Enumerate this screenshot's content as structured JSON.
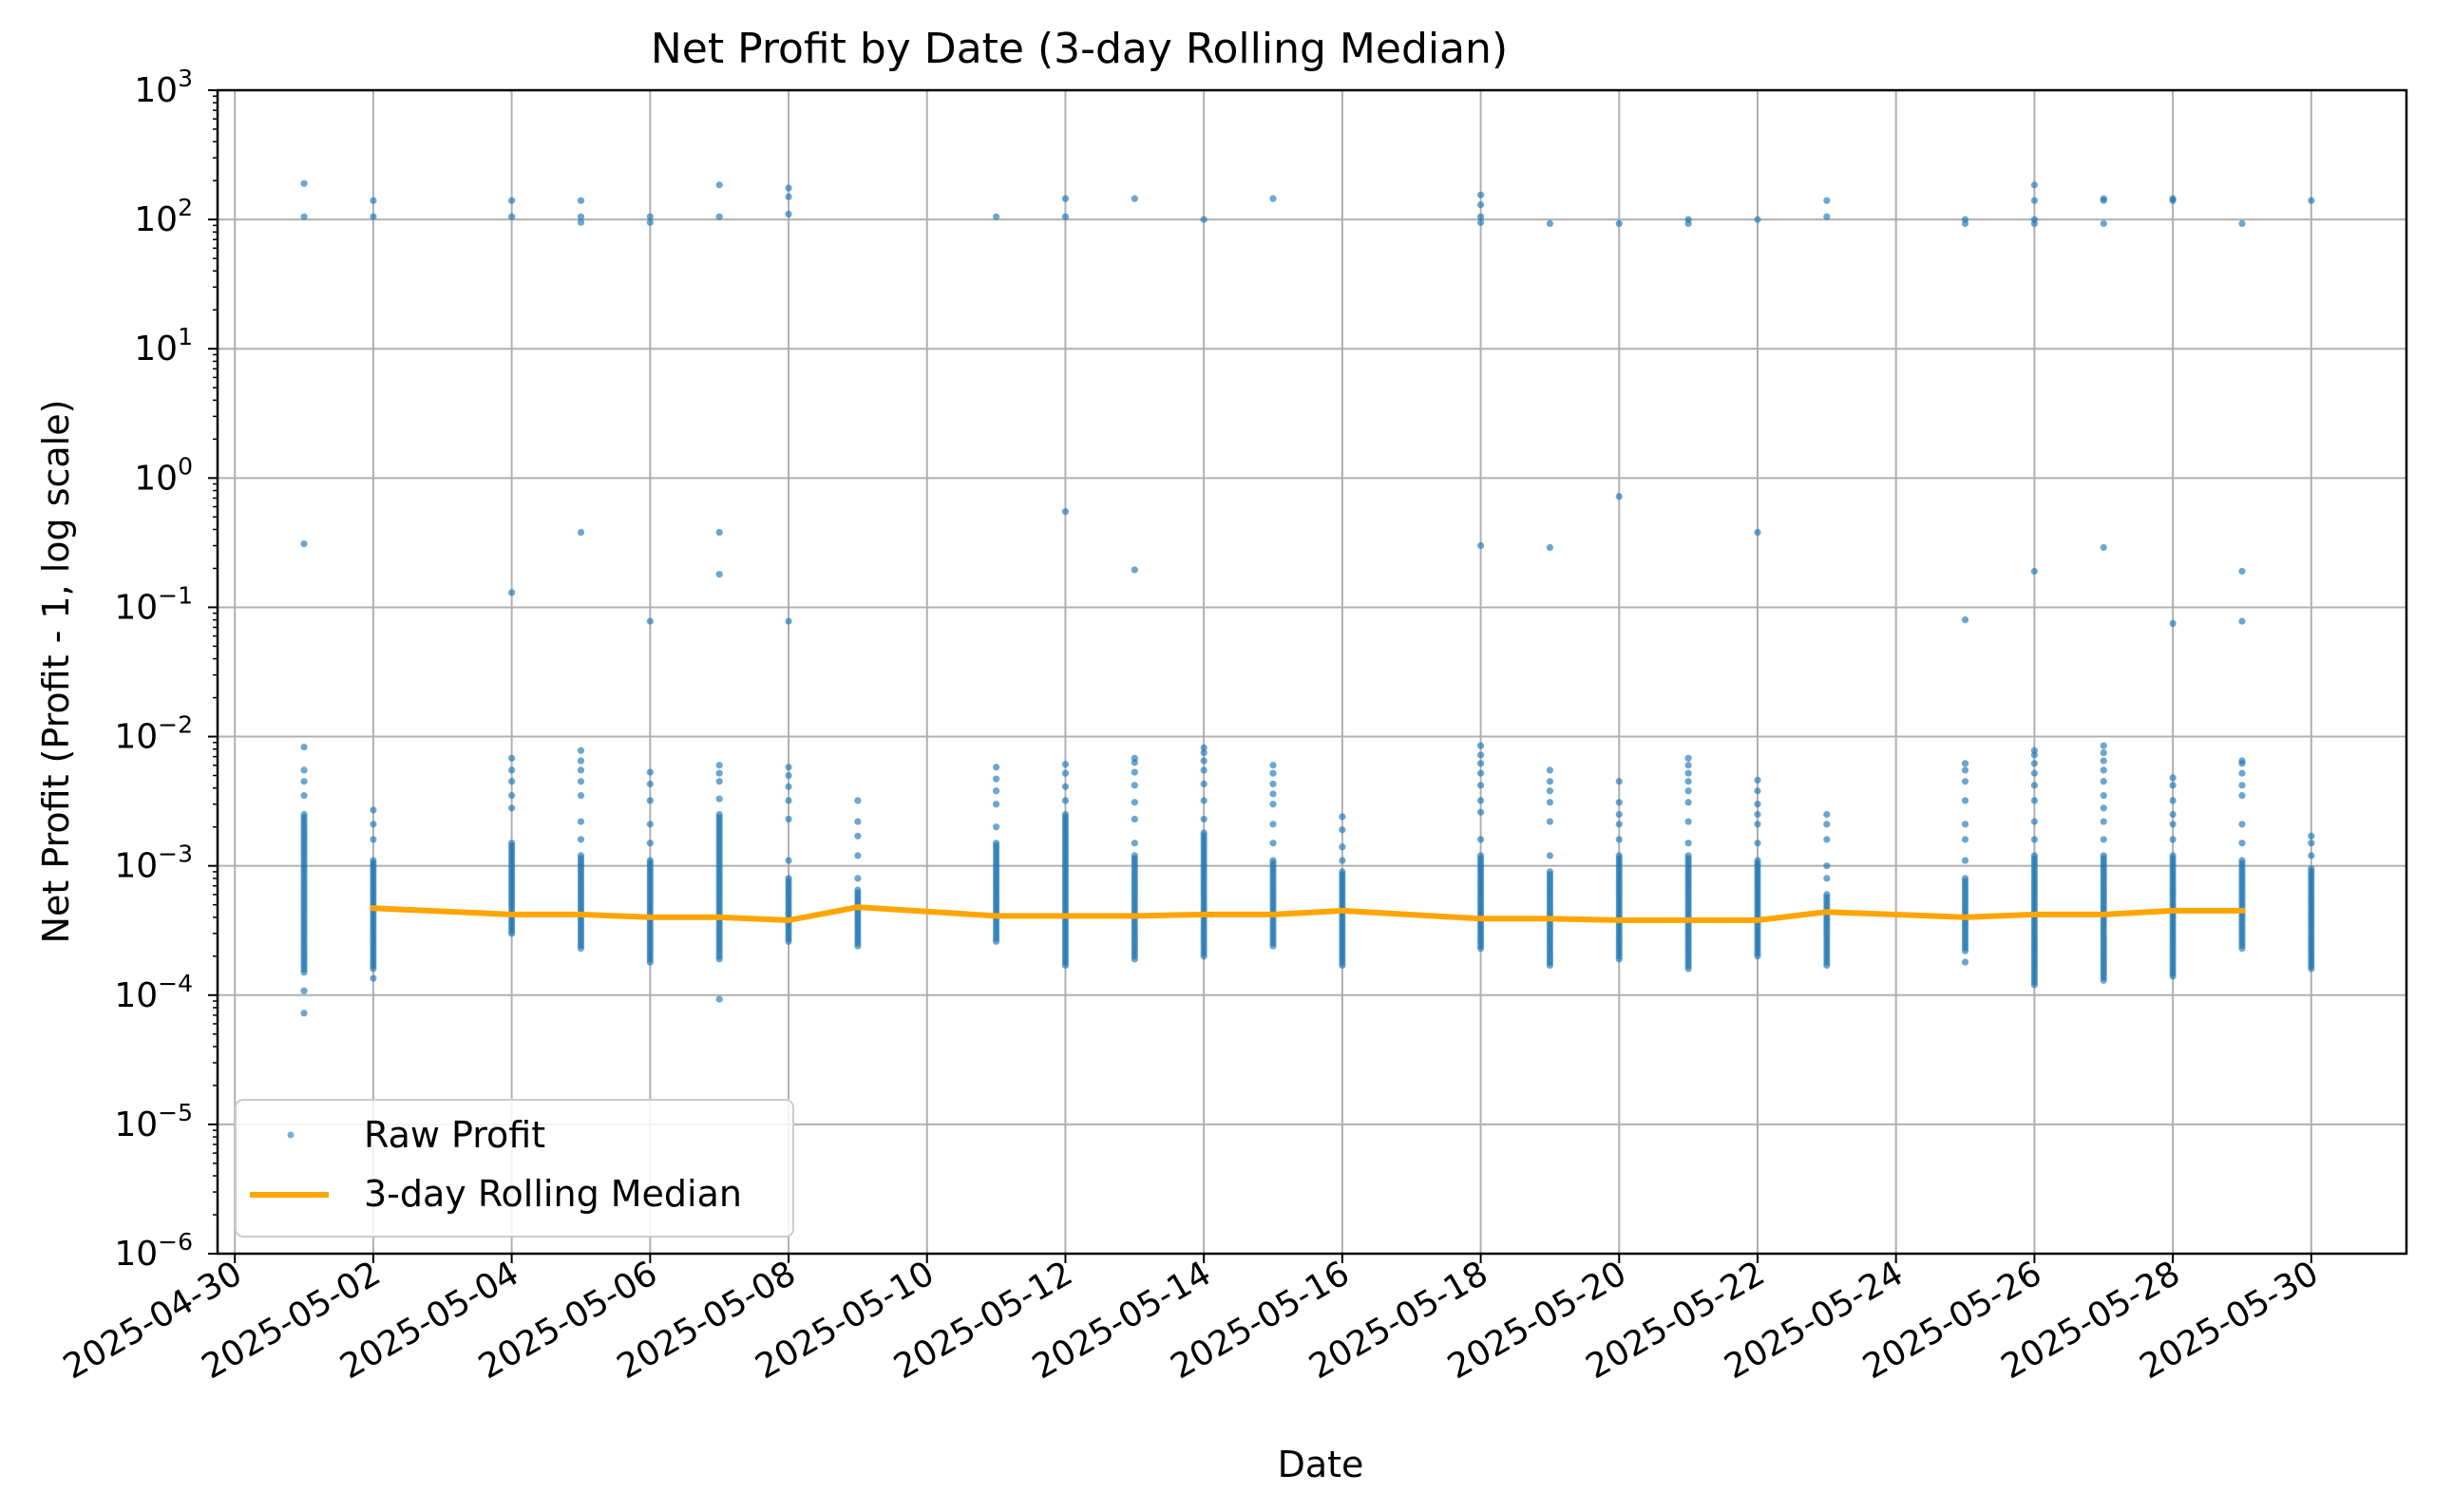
{
  "chart_data": {
    "type": "scatter",
    "title": "Net Profit by Date (3-day Rolling Median)",
    "xlabel": "Date",
    "ylabel": "Net Profit (Profit - 1, log scale)",
    "yscale": "log",
    "ylim": [
      1e-06,
      1000
    ],
    "xlim": [
      "2025-04-29T18:00",
      "2025-05-31T09:00"
    ],
    "grid": true,
    "legend_position": "lower-left",
    "x_ticks": [
      "2025-04-30",
      "2025-05-02",
      "2025-05-04",
      "2025-05-06",
      "2025-05-08",
      "2025-05-10",
      "2025-05-12",
      "2025-05-14",
      "2025-05-16",
      "2025-05-18",
      "2025-05-20",
      "2025-05-22",
      "2025-05-24",
      "2025-05-26",
      "2025-05-28",
      "2025-05-30"
    ],
    "y_ticks": [
      {
        "base": "10",
        "exp": "−6",
        "value": 1e-06
      },
      {
        "base": "10",
        "exp": "−5",
        "value": 1e-05
      },
      {
        "base": "10",
        "exp": "−4",
        "value": 0.0001
      },
      {
        "base": "10",
        "exp": "−3",
        "value": 0.001
      },
      {
        "base": "10",
        "exp": "−2",
        "value": 0.01
      },
      {
        "base": "10",
        "exp": "−1",
        "value": 0.1
      },
      {
        "base": "10",
        "exp": "0",
        "value": 1
      },
      {
        "base": "10",
        "exp": "1",
        "value": 10
      },
      {
        "base": "10",
        "exp": "2",
        "value": 100
      },
      {
        "base": "10",
        "exp": "3",
        "value": 1000
      }
    ],
    "series": [
      {
        "name": "Raw Profit",
        "kind": "scatter",
        "color": "#1f77b4",
        "points_by_date": [
          {
            "date": "2025-05-01",
            "band": [
              0.00015,
              0.0025
            ],
            "outliers": [
              7.25e-05,
              0.000108,
              0.0035,
              0.0045,
              0.0055,
              0.0083,
              0.31,
              105,
              190
            ]
          },
          {
            "date": "2025-05-02",
            "band": [
              0.00016,
              0.0011
            ],
            "outliers": [
              0.000135,
              0.0016,
              0.0021,
              0.0027,
              105,
              140
            ]
          },
          {
            "date": "2025-05-04",
            "band": [
              0.0003,
              0.0015
            ],
            "outliers": [
              0.0028,
              0.0035,
              0.0045,
              0.0055,
              0.0068,
              0.13,
              105,
              140
            ]
          },
          {
            "date": "2025-05-05",
            "band": [
              0.00023,
              0.0012
            ],
            "outliers": [
              0.0016,
              0.0022,
              0.0035,
              0.0045,
              0.0055,
              0.0065,
              0.0078,
              0.38,
              95,
              105,
              140
            ]
          },
          {
            "date": "2025-05-06",
            "band": [
              0.00018,
              0.0011
            ],
            "outliers": [
              0.0015,
              0.0021,
              0.0032,
              0.0043,
              0.0053,
              0.078,
              95,
              105
            ]
          },
          {
            "date": "2025-05-07",
            "band": [
              0.00019,
              0.0025
            ],
            "outliers": [
              9.3e-05,
              0.0033,
              0.0045,
              0.0052,
              0.006,
              0.18,
              0.38,
              105,
              185
            ]
          },
          {
            "date": "2025-05-08",
            "band": [
              0.00026,
              0.0008
            ],
            "outliers": [
              0.0011,
              0.0023,
              0.0032,
              0.0041,
              0.005,
              0.0058,
              0.078,
              110,
              150,
              175
            ]
          },
          {
            "date": "2025-05-09",
            "band": [
              0.00024,
              0.00065
            ],
            "outliers": [
              0.0008,
              0.0012,
              0.0017,
              0.0022,
              0.0032
            ]
          },
          {
            "date": "2025-05-11",
            "band": [
              0.00026,
              0.0015
            ],
            "outliers": [
              0.002,
              0.003,
              0.0038,
              0.0047,
              0.0058,
              105
            ]
          },
          {
            "date": "2025-05-12",
            "band": [
              0.00017,
              0.0025
            ],
            "outliers": [
              0.0032,
              0.0041,
              0.0052,
              0.0061,
              0.55,
              105,
              145
            ]
          },
          {
            "date": "2025-05-13",
            "band": [
              0.00019,
              0.0012
            ],
            "outliers": [
              0.0015,
              0.0023,
              0.0031,
              0.0042,
              0.0053,
              0.0063,
              0.0068,
              0.195,
              145
            ]
          },
          {
            "date": "2025-05-14",
            "band": [
              0.0002,
              0.0018
            ],
            "outliers": [
              0.0023,
              0.0032,
              0.0043,
              0.0055,
              0.0065,
              0.0075,
              0.0082,
              100
            ]
          },
          {
            "date": "2025-05-15",
            "band": [
              0.00024,
              0.0011
            ],
            "outliers": [
              0.0015,
              0.0021,
              0.003,
              0.0036,
              0.0043,
              0.0052,
              0.006,
              145
            ]
          },
          {
            "date": "2025-05-16",
            "band": [
              0.00017,
              0.0009
            ],
            "outliers": [
              0.0011,
              0.0014,
              0.0019,
              0.0024
            ]
          },
          {
            "date": "2025-05-18",
            "band": [
              0.00023,
              0.0012
            ],
            "outliers": [
              0.0016,
              0.0026,
              0.0032,
              0.0042,
              0.0052,
              0.0062,
              0.0072,
              0.0085,
              0.3,
              95,
              105,
              130,
              155
            ]
          },
          {
            "date": "2025-05-19",
            "band": [
              0.00017,
              0.0009
            ],
            "outliers": [
              0.0012,
              0.0022,
              0.0031,
              0.0038,
              0.0045,
              0.0055,
              0.29,
              93
            ]
          },
          {
            "date": "2025-05-20",
            "band": [
              0.00019,
              0.0012
            ],
            "outliers": [
              0.0016,
              0.0021,
              0.0025,
              0.0031,
              0.0045,
              0.72,
              93
            ]
          },
          {
            "date": "2025-05-21",
            "band": [
              0.00016,
              0.0012
            ],
            "outliers": [
              0.0015,
              0.0022,
              0.0031,
              0.0038,
              0.0045,
              0.0052,
              0.006,
              0.0068,
              93,
              100
            ]
          },
          {
            "date": "2025-05-22",
            "band": [
              0.0002,
              0.0011
            ],
            "outliers": [
              0.0015,
              0.0021,
              0.0025,
              0.003,
              0.0038,
              0.0046,
              0.38,
              100
            ]
          },
          {
            "date": "2025-05-23",
            "band": [
              0.00017,
              0.0006
            ],
            "outliers": [
              0.0008,
              0.001,
              0.0016,
              0.0021,
              0.0025,
              105,
              140
            ]
          },
          {
            "date": "2025-05-25",
            "band": [
              0.00022,
              0.0008
            ],
            "outliers": [
              0.00018,
              0.0011,
              0.0016,
              0.0021,
              0.0032,
              0.0045,
              0.0055,
              0.0062,
              0.08,
              93,
              100
            ]
          },
          {
            "date": "2025-05-26",
            "band": [
              0.00012,
              0.0012
            ],
            "outliers": [
              0.0016,
              0.0022,
              0.0032,
              0.0042,
              0.0052,
              0.0062,
              0.0072,
              0.0078,
              0.19,
              93,
              100,
              140,
              185
            ]
          },
          {
            "date": "2025-05-27",
            "band": [
              0.00013,
              0.0012
            ],
            "outliers": [
              0.0016,
              0.0022,
              0.0028,
              0.0035,
              0.0045,
              0.0055,
              0.0065,
              0.0075,
              0.0085,
              0.29,
              93,
              140,
              145
            ]
          },
          {
            "date": "2025-05-28",
            "band": [
              0.00014,
              0.0012
            ],
            "outliers": [
              0.0016,
              0.0021,
              0.0025,
              0.0032,
              0.0042,
              0.0048,
              0.075,
              140,
              145
            ]
          },
          {
            "date": "2025-05-29",
            "band": [
              0.00023,
              0.0011
            ],
            "outliers": [
              0.0015,
              0.0021,
              0.0035,
              0.0042,
              0.0052,
              0.0062,
              0.0065,
              0.078,
              0.19,
              93
            ]
          },
          {
            "date": "2025-05-30",
            "band": [
              0.00016,
              0.00095
            ],
            "outliers": [
              0.0012,
              0.0015,
              0.0017,
              140
            ]
          }
        ]
      },
      {
        "name": "3-day Rolling Median",
        "kind": "line",
        "color": "#ffa500",
        "x": [
          "2025-05-02",
          "2025-05-04",
          "2025-05-05",
          "2025-05-06",
          "2025-05-07",
          "2025-05-08",
          "2025-05-09",
          "2025-05-11",
          "2025-05-12",
          "2025-05-13",
          "2025-05-14",
          "2025-05-15",
          "2025-05-16",
          "2025-05-18",
          "2025-05-19",
          "2025-05-20",
          "2025-05-21",
          "2025-05-22",
          "2025-05-23",
          "2025-05-25",
          "2025-05-26",
          "2025-05-27",
          "2025-05-28",
          "2025-05-29"
        ],
        "values": [
          0.00047,
          0.00042,
          0.00042,
          0.0004,
          0.0004,
          0.00038,
          0.00048,
          0.00041,
          0.00041,
          0.00041,
          0.00042,
          0.00042,
          0.00045,
          0.00039,
          0.00039,
          0.00038,
          0.00038,
          0.00038,
          0.00044,
          0.0004,
          0.00042,
          0.00042,
          0.00045,
          0.00045
        ]
      }
    ]
  },
  "colors": {
    "scatter": "#1f77b4",
    "median_line": "#ffa500",
    "grid": "#b0b0b0",
    "frame": "#000000"
  }
}
